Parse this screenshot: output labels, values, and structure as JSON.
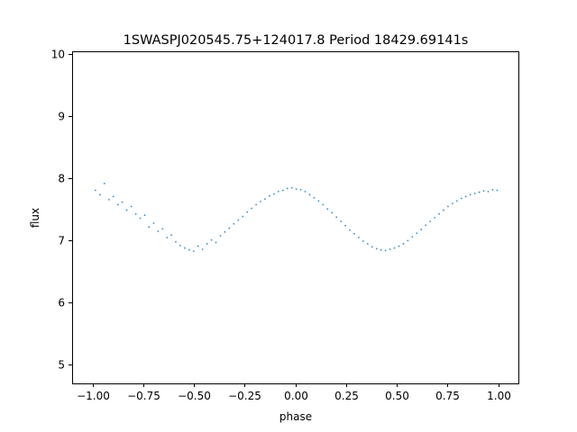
{
  "chart_data": {
    "type": "scatter",
    "title": "1SWASPJ020545.75+124017.8 Period 18429.69141s",
    "xlabel": "phase",
    "ylabel": "flux",
    "xlim": [
      -1.1,
      1.1
    ],
    "ylim": [
      4.7,
      10.05
    ],
    "xticks": [
      -1.0,
      -0.75,
      -0.5,
      -0.25,
      0.0,
      0.25,
      0.5,
      0.75,
      1.0
    ],
    "xtick_labels": [
      "−1.00",
      "−0.75",
      "−0.50",
      "−0.25",
      "0.00",
      "0.25",
      "0.50",
      "0.75",
      "1.00"
    ],
    "yticks": [
      5,
      6,
      7,
      8,
      9,
      10
    ],
    "ytick_labels": [
      "5",
      "6",
      "7",
      "8",
      "9",
      "10"
    ],
    "grid": false,
    "legend": false,
    "marker_color": "#1f77b4",
    "series": [
      {
        "marker": "point",
        "trend": {
          "description_x": [
            -1.0,
            -0.75,
            -0.5,
            -0.25,
            0.0,
            0.25,
            0.5,
            0.75,
            1.0
          ],
          "flux": [
            7.75,
            7.4,
            6.9,
            7.35,
            7.8,
            7.3,
            6.9,
            7.35,
            7.75
          ]
        },
        "points": [
          [
            -0.985,
            7.81
          ],
          [
            -0.962,
            7.74
          ],
          [
            -0.941,
            7.92
          ],
          [
            -0.918,
            7.66
          ],
          [
            -0.897,
            7.71
          ],
          [
            -0.874,
            7.58
          ],
          [
            -0.853,
            7.62
          ],
          [
            -0.831,
            7.49
          ],
          [
            -0.808,
            7.55
          ],
          [
            -0.786,
            7.43
          ],
          [
            -0.764,
            7.36
          ],
          [
            -0.742,
            7.41
          ],
          [
            -0.721,
            7.22
          ],
          [
            -0.698,
            7.28
          ],
          [
            -0.676,
            7.15
          ],
          [
            -0.654,
            7.19
          ],
          [
            -0.632,
            7.05
          ],
          [
            -0.611,
            7.09
          ],
          [
            -0.589,
            6.98
          ],
          [
            -0.567,
            6.92
          ],
          [
            -0.545,
            6.88
          ],
          [
            -0.523,
            6.85
          ],
          [
            -0.501,
            6.83
          ],
          [
            -0.479,
            6.91
          ],
          [
            -0.457,
            6.86
          ],
          [
            -0.435,
            6.95
          ],
          [
            -0.413,
            7.01
          ],
          [
            -0.391,
            6.97
          ],
          [
            -0.369,
            7.08
          ],
          [
            -0.347,
            7.14
          ],
          [
            -0.325,
            7.2
          ],
          [
            -0.303,
            7.27
          ],
          [
            -0.281,
            7.33
          ],
          [
            -0.259,
            7.39
          ],
          [
            -0.237,
            7.46
          ],
          [
            -0.215,
            7.52
          ],
          [
            -0.193,
            7.58
          ],
          [
            -0.171,
            7.63
          ],
          [
            -0.149,
            7.67
          ],
          [
            -0.127,
            7.72
          ],
          [
            -0.105,
            7.75
          ],
          [
            -0.083,
            7.79
          ],
          [
            -0.061,
            7.81
          ],
          [
            -0.039,
            7.84
          ],
          [
            -0.017,
            7.85
          ],
          [
            0.005,
            7.83
          ],
          [
            0.027,
            7.82
          ],
          [
            0.049,
            7.79
          ],
          [
            0.071,
            7.74
          ],
          [
            0.093,
            7.69
          ],
          [
            0.115,
            7.64
          ],
          [
            0.137,
            7.58
          ],
          [
            0.159,
            7.51
          ],
          [
            0.181,
            7.45
          ],
          [
            0.203,
            7.38
          ],
          [
            0.225,
            7.31
          ],
          [
            0.247,
            7.24
          ],
          [
            0.269,
            7.17
          ],
          [
            0.291,
            7.11
          ],
          [
            0.313,
            7.05
          ],
          [
            0.335,
            6.99
          ],
          [
            0.357,
            6.95
          ],
          [
            0.379,
            6.9
          ],
          [
            0.401,
            6.87
          ],
          [
            0.423,
            6.85
          ],
          [
            0.445,
            6.84
          ],
          [
            0.467,
            6.86
          ],
          [
            0.489,
            6.88
          ],
          [
            0.511,
            6.91
          ],
          [
            0.533,
            6.95
          ],
          [
            0.555,
            7.0
          ],
          [
            0.577,
            7.06
          ],
          [
            0.599,
            7.12
          ],
          [
            0.621,
            7.18
          ],
          [
            0.643,
            7.25
          ],
          [
            0.665,
            7.31
          ],
          [
            0.687,
            7.37
          ],
          [
            0.709,
            7.43
          ],
          [
            0.731,
            7.49
          ],
          [
            0.753,
            7.55
          ],
          [
            0.775,
            7.6
          ],
          [
            0.797,
            7.64
          ],
          [
            0.819,
            7.68
          ],
          [
            0.841,
            7.71
          ],
          [
            0.863,
            7.74
          ],
          [
            0.885,
            7.76
          ],
          [
            0.907,
            7.78
          ],
          [
            0.929,
            7.8
          ],
          [
            0.951,
            7.79
          ],
          [
            0.973,
            7.82
          ],
          [
            0.995,
            7.81
          ]
        ]
      }
    ]
  }
}
